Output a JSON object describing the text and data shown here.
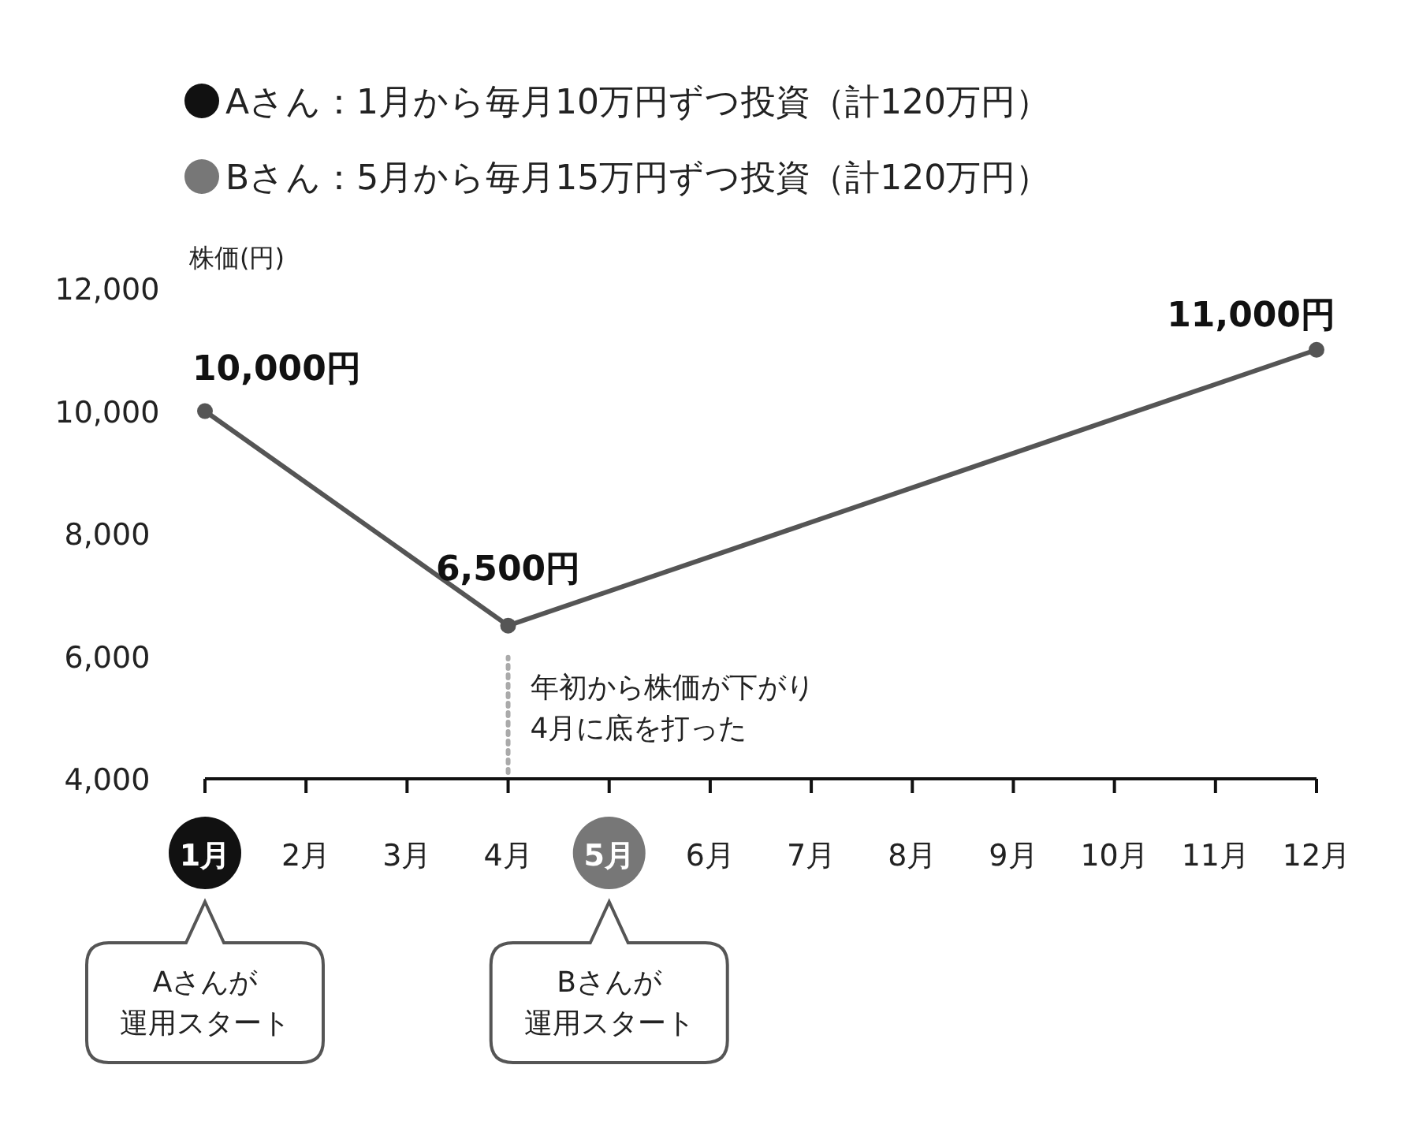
{
  "chart_data": {
    "type": "line",
    "ylabel": "株価(円)",
    "x": [
      1,
      4,
      12
    ],
    "values": [
      10000,
      6500,
      11000
    ],
    "color": "#555555",
    "marker": "circle",
    "line_style": "solid",
    "value_labels": [
      "10,000円",
      "6,500円",
      "11,000円"
    ],
    "xlim": [
      1,
      12
    ],
    "xticks": [
      {
        "value": 1,
        "label": "1月"
      },
      {
        "value": 2,
        "label": "2月"
      },
      {
        "value": 3,
        "label": "3月"
      },
      {
        "value": 4,
        "label": "4月"
      },
      {
        "value": 5,
        "label": "5月"
      },
      {
        "value": 6,
        "label": "6月"
      },
      {
        "value": 7,
        "label": "7月"
      },
      {
        "value": 8,
        "label": "8月"
      },
      {
        "value": 9,
        "label": "9月"
      },
      {
        "value": 10,
        "label": "10月"
      },
      {
        "value": 11,
        "label": "11月"
      },
      {
        "value": 12,
        "label": "12月"
      }
    ],
    "ylim": [
      4000,
      12000
    ],
    "yticks": [
      {
        "value": 4000,
        "label": "4,000"
      },
      {
        "value": 6000,
        "label": "6,000"
      },
      {
        "value": 8000,
        "label": "8,000"
      },
      {
        "value": 10000,
        "label": "10,000"
      },
      {
        "value": 12000,
        "label": "12,000"
      }
    ],
    "grid": false,
    "ref_lines": [
      {
        "axis": "x",
        "value": 4,
        "label": "年初から株価が下がり4月に底を打った",
        "color": "#aaaaaa",
        "line_style": "dotted"
      }
    ],
    "annotations": [
      "Aさん：1月から毎月10万円ずつ投資（計120万円）",
      "Bさん：5月から毎月15万円ずつ投資（計120万円）",
      "Aさんが運用スタート",
      "Bさんが運用スタート"
    ]
  }
}
